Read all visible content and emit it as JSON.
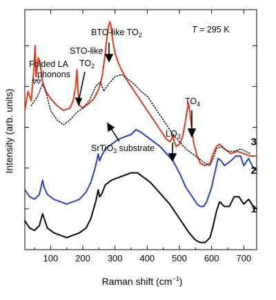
{
  "chart_data": {
    "type": "line",
    "xlabel": "Raman shift (cm",
    "xlabel_sup": "−1",
    "xlabel_end": ")",
    "ylabel": "Intensity (arb. units)",
    "xlim": [
      20,
      740
    ],
    "ylim": [
      0,
      100
    ],
    "x_ticks": [
      100,
      200,
      300,
      400,
      500,
      600,
      700
    ],
    "y_ticks_labeled": false,
    "grid": false,
    "colors": {
      "red": "#ee3311",
      "blue": "#1f3fcc",
      "black": "#000000",
      "dotted": "#000000"
    },
    "series": [
      {
        "name": "3",
        "color": "#ee3311",
        "style": "solid",
        "points": [
          [
            20,
            58
          ],
          [
            30,
            66
          ],
          [
            40,
            62
          ],
          [
            48,
            75
          ],
          [
            52,
            85
          ],
          [
            55,
            72
          ],
          [
            62,
            80
          ],
          [
            68,
            77
          ],
          [
            75,
            70
          ],
          [
            85,
            66
          ],
          [
            100,
            63
          ],
          [
            120,
            60
          ],
          [
            140,
            58
          ],
          [
            160,
            59
          ],
          [
            170,
            62
          ],
          [
            178,
            68
          ],
          [
            182,
            75
          ],
          [
            185,
            66
          ],
          [
            190,
            60
          ],
          [
            200,
            59
          ],
          [
            220,
            61
          ],
          [
            235,
            63
          ],
          [
            250,
            67
          ],
          [
            260,
            72
          ],
          [
            268,
            80
          ],
          [
            275,
            88
          ],
          [
            280,
            93
          ],
          [
            284,
            95
          ],
          [
            288,
            93
          ],
          [
            292,
            88
          ],
          [
            300,
            82
          ],
          [
            310,
            78
          ],
          [
            320,
            75
          ],
          [
            340,
            70
          ],
          [
            360,
            66
          ],
          [
            380,
            62
          ],
          [
            400,
            58
          ],
          [
            420,
            54
          ],
          [
            440,
            50
          ],
          [
            460,
            46
          ],
          [
            470,
            45
          ],
          [
            476,
            46
          ],
          [
            480,
            48
          ],
          [
            484,
            45
          ],
          [
            490,
            43
          ],
          [
            500,
            44
          ],
          [
            510,
            47
          ],
          [
            518,
            53
          ],
          [
            524,
            58
          ],
          [
            528,
            61
          ],
          [
            532,
            58
          ],
          [
            538,
            51
          ],
          [
            545,
            44
          ],
          [
            555,
            39
          ],
          [
            565,
            36
          ],
          [
            580,
            35
          ],
          [
            595,
            36
          ],
          [
            605,
            40
          ],
          [
            615,
            43
          ],
          [
            625,
            44
          ],
          [
            640,
            42
          ],
          [
            660,
            40
          ],
          [
            680,
            41
          ],
          [
            700,
            40
          ],
          [
            720,
            39
          ],
          [
            740,
            39
          ]
        ]
      },
      {
        "name": "SrTiO3 substrate",
        "color": "#000000",
        "style": "dotted",
        "points": [
          [
            40,
            60
          ],
          [
            60,
            64
          ],
          [
            75,
            69
          ],
          [
            85,
            66
          ],
          [
            100,
            58
          ],
          [
            120,
            54
          ],
          [
            140,
            52
          ],
          [
            160,
            54
          ],
          [
            180,
            57
          ],
          [
            200,
            59
          ],
          [
            220,
            62
          ],
          [
            240,
            68
          ],
          [
            255,
            70
          ],
          [
            265,
            66
          ],
          [
            280,
            69
          ],
          [
            300,
            72
          ],
          [
            320,
            73
          ],
          [
            340,
            71
          ],
          [
            360,
            69
          ],
          [
            380,
            66
          ],
          [
            400,
            64
          ],
          [
            420,
            60
          ],
          [
            440,
            56
          ],
          [
            460,
            52
          ],
          [
            480,
            48
          ],
          [
            500,
            45
          ],
          [
            520,
            42
          ],
          [
            540,
            40
          ],
          [
            560,
            38
          ],
          [
            580,
            36
          ],
          [
            595,
            35
          ],
          [
            605,
            38
          ],
          [
            615,
            42
          ],
          [
            630,
            43
          ],
          [
            650,
            41
          ],
          [
            670,
            41
          ],
          [
            690,
            42
          ],
          [
            720,
            40
          ]
        ]
      },
      {
        "name": "2",
        "color": "#1f3fcc",
        "style": "solid",
        "points": [
          [
            20,
            25
          ],
          [
            35,
            22
          ],
          [
            50,
            21
          ],
          [
            65,
            23
          ],
          [
            75,
            29
          ],
          [
            80,
            26
          ],
          [
            90,
            23
          ],
          [
            110,
            21
          ],
          [
            130,
            20
          ],
          [
            150,
            19
          ],
          [
            170,
            20
          ],
          [
            190,
            21
          ],
          [
            210,
            24
          ],
          [
            225,
            28
          ],
          [
            240,
            35
          ],
          [
            248,
            40
          ],
          [
            252,
            37
          ],
          [
            258,
            39
          ],
          [
            270,
            42
          ],
          [
            290,
            44
          ],
          [
            310,
            46
          ],
          [
            330,
            47
          ],
          [
            350,
            48
          ],
          [
            365,
            50
          ],
          [
            380,
            49
          ],
          [
            400,
            47
          ],
          [
            420,
            45
          ],
          [
            440,
            43
          ],
          [
            460,
            40
          ],
          [
            480,
            37
          ],
          [
            500,
            32
          ],
          [
            520,
            26
          ],
          [
            540,
            22
          ],
          [
            555,
            19
          ],
          [
            565,
            18
          ],
          [
            575,
            18
          ],
          [
            585,
            20
          ],
          [
            600,
            26
          ],
          [
            610,
            32
          ],
          [
            620,
            38
          ],
          [
            630,
            37
          ],
          [
            640,
            35
          ],
          [
            660,
            37
          ],
          [
            675,
            39
          ],
          [
            690,
            39
          ],
          [
            700,
            35
          ],
          [
            715,
            38
          ],
          [
            730,
            34
          ],
          [
            740,
            33
          ]
        ]
      },
      {
        "name": "1",
        "color": "#000000",
        "style": "solid",
        "points": [
          [
            20,
            12
          ],
          [
            35,
            9
          ],
          [
            50,
            8
          ],
          [
            65,
            10
          ],
          [
            75,
            15
          ],
          [
            80,
            13
          ],
          [
            90,
            9
          ],
          [
            110,
            7
          ],
          [
            130,
            6
          ],
          [
            150,
            5
          ],
          [
            170,
            6
          ],
          [
            190,
            7
          ],
          [
            210,
            9
          ],
          [
            225,
            13
          ],
          [
            240,
            20
          ],
          [
            248,
            25
          ],
          [
            252,
            22
          ],
          [
            258,
            23
          ],
          [
            270,
            27
          ],
          [
            290,
            29
          ],
          [
            310,
            30
          ],
          [
            330,
            31
          ],
          [
            350,
            32
          ],
          [
            370,
            32
          ],
          [
            390,
            30
          ],
          [
            410,
            28
          ],
          [
            430,
            25
          ],
          [
            450,
            22
          ],
          [
            470,
            19
          ],
          [
            490,
            15
          ],
          [
            510,
            11
          ],
          [
            530,
            7
          ],
          [
            550,
            4
          ],
          [
            565,
            3
          ],
          [
            580,
            3
          ],
          [
            595,
            5
          ],
          [
            605,
            10
          ],
          [
            615,
            16
          ],
          [
            625,
            20
          ],
          [
            640,
            18
          ],
          [
            655,
            18
          ],
          [
            670,
            22
          ],
          [
            685,
            22
          ],
          [
            700,
            19
          ],
          [
            715,
            21
          ],
          [
            730,
            18
          ],
          [
            740,
            17
          ]
        ]
      }
    ],
    "series_labels": [
      {
        "text": "3",
        "x": 722,
        "y": 45
      },
      {
        "text": "2",
        "x": 722,
        "y": 33
      },
      {
        "text": "1",
        "x": 722,
        "y": 17
      }
    ],
    "annotations": {
      "temperature": {
        "italic": "T",
        "rest": " = 295 K"
      },
      "folded": {
        "line1": "Folded LA",
        "line2": "phonons"
      },
      "sto_like": {
        "line1": "STO-like",
        "line2_main": "TO",
        "line2_sub": "2"
      },
      "bto_like": {
        "main": "BTO-like TO",
        "sub": "2"
      },
      "substrate": {
        "pre": "SrTiO",
        "sub": "3",
        "post": " substrate"
      },
      "lo3": {
        "main": "LO",
        "sub": "3"
      },
      "to4": {
        "main": "TO",
        "sub": "4"
      }
    }
  }
}
